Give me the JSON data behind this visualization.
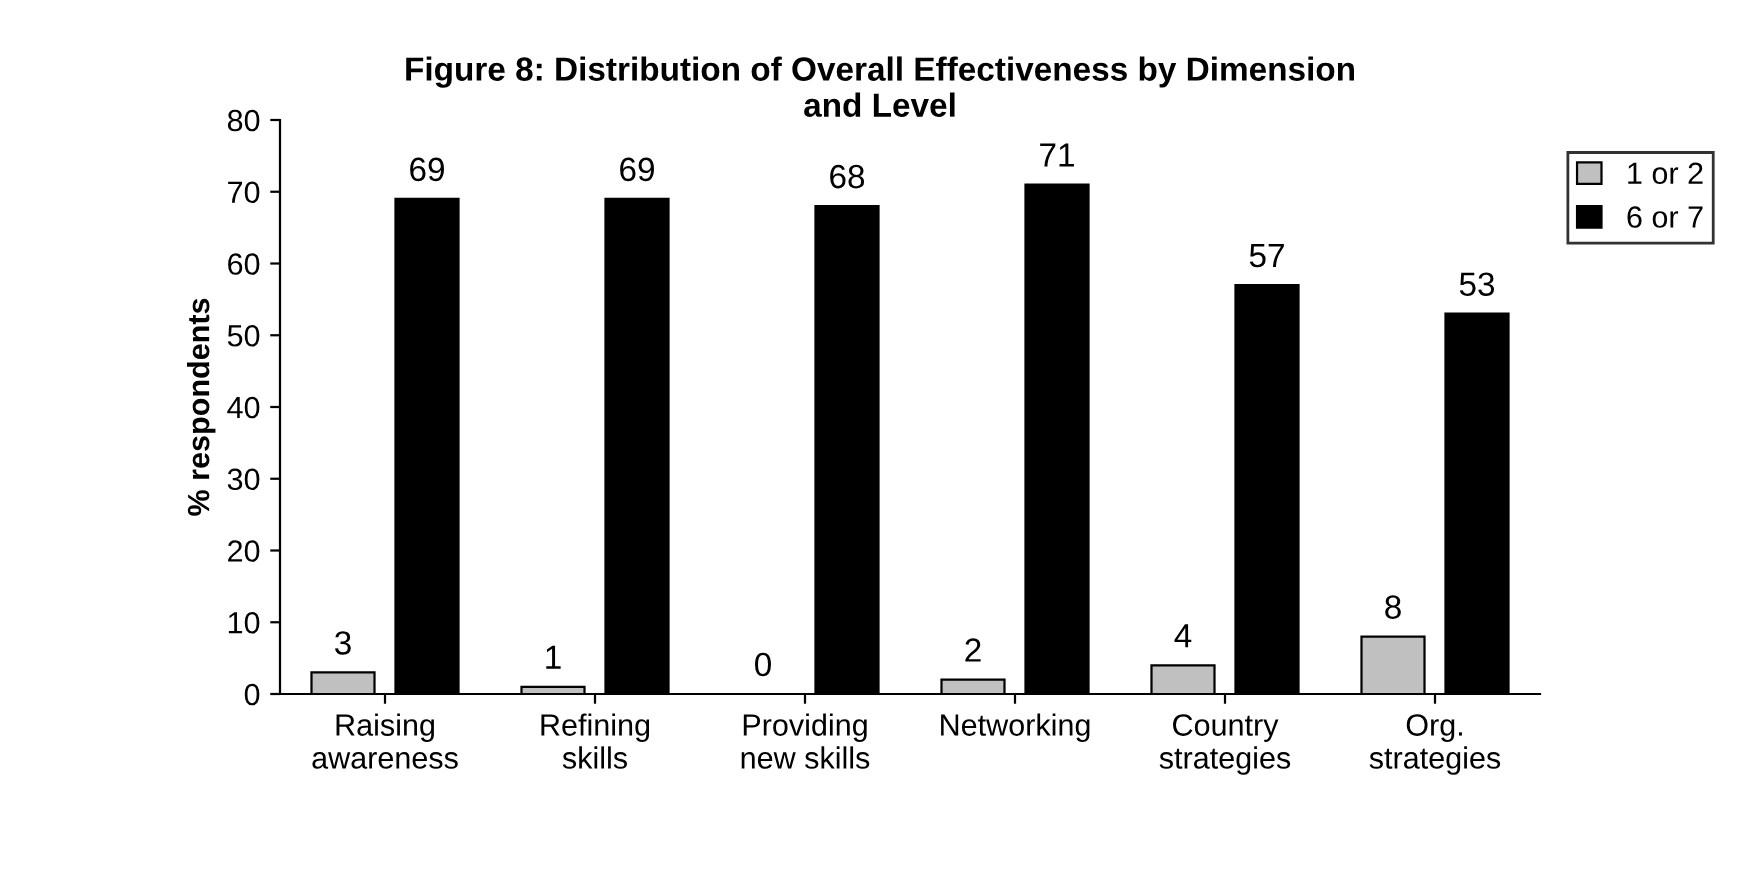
{
  "chart_data": {
    "type": "bar",
    "title": "Figure 8: Distribution of Overall Effectiveness by Dimension\nand Level",
    "ylabel": "% respondents",
    "categories": [
      "Raising\nawareness",
      "Refining\nskills",
      "Providing\nnew skills",
      "Networking",
      "Country\nstrategies",
      "Org.\nstrategies"
    ],
    "series": [
      {
        "name": "1 or 2",
        "color": "#c0c0c0",
        "values": [
          3,
          1,
          0,
          2,
          4,
          8
        ]
      },
      {
        "name": "6 or 7",
        "color": "#000000",
        "values": [
          69,
          69,
          68,
          71,
          57,
          53
        ]
      }
    ],
    "ylim": [
      0,
      80
    ],
    "yticks": [
      0,
      10,
      20,
      30,
      40,
      50,
      60,
      70,
      80
    ],
    "data_labels": true,
    "legend": "top right",
    "grid": false
  }
}
